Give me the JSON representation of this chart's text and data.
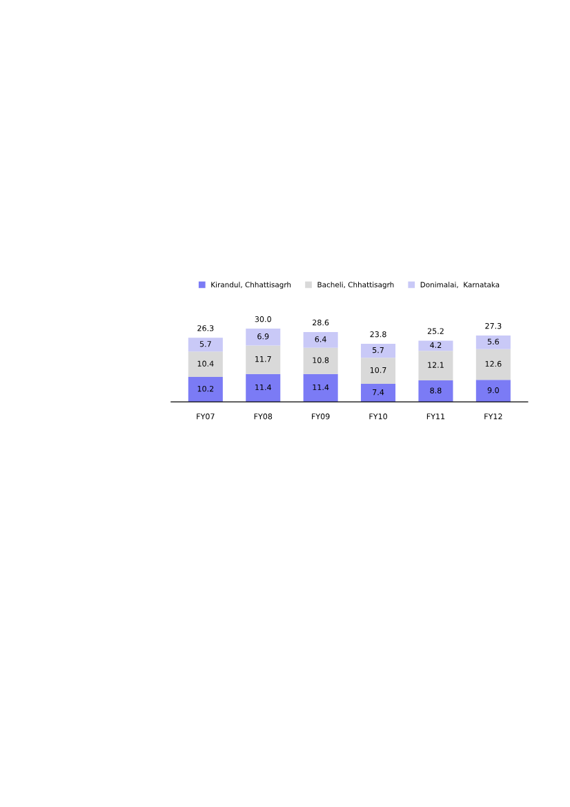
{
  "chart_data": {
    "type": "bar",
    "stacked": true,
    "legend": "top",
    "grid": false,
    "tick_labels": "x",
    "categories": [
      "FY07",
      "FY08",
      "FY09",
      "FY10",
      "FY11",
      "FY12"
    ],
    "series": [
      {
        "name": "Kirandul, Chhattisagrh",
        "color": "#7b7bf5",
        "values": [
          10.2,
          11.4,
          11.4,
          7.4,
          8.8,
          9.0
        ],
        "value_labels": [
          "10.2",
          "11.4",
          "11.4",
          "7.4",
          "8.8",
          "9.0"
        ]
      },
      {
        "name": "Bacheli, Chhattisagrh",
        "color": "#d9d9d9",
        "values": [
          10.4,
          11.7,
          10.8,
          10.7,
          12.1,
          12.6
        ],
        "value_labels": [
          "10.4",
          "11.7",
          "10.8",
          "10.7",
          "12.1",
          "12.6"
        ]
      },
      {
        "name": "Donimalai,  Karnataka",
        "color": "#c9c9f7",
        "values": [
          5.7,
          6.9,
          6.4,
          5.7,
          4.2,
          5.6
        ],
        "value_labels": [
          "5.7",
          "6.9",
          "6.4",
          "5.7",
          "4.2",
          "5.6"
        ]
      }
    ],
    "totals": [
      "26.3",
      "30.0",
      "28.6",
      "23.8",
      "25.2",
      "27.3"
    ]
  }
}
